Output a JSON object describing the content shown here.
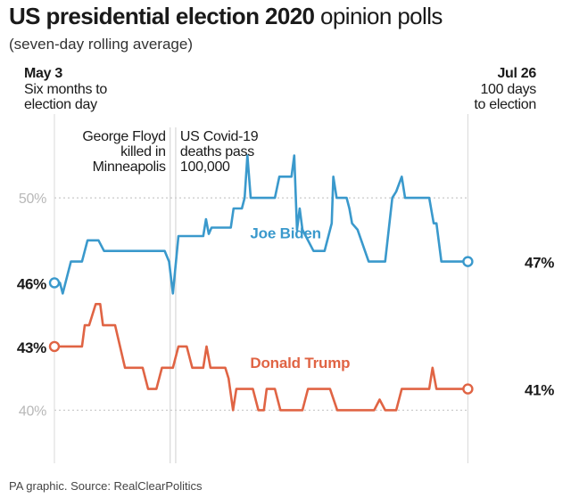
{
  "header": {
    "title_bold": "US presidential election 2020",
    "title_rest": "opinion polls",
    "subtitle": "(seven-day rolling average)"
  },
  "footer": {
    "source": "PA graphic. Source: RealClearPolitics"
  },
  "chart_data": {
    "type": "line",
    "title": "US presidential election 2020 opinion polls",
    "subtitle": "(seven-day rolling average)",
    "xlabel": "",
    "ylabel": "",
    "ylim": [
      37.5,
      56.3
    ],
    "xlim": [
      0,
      84
    ],
    "yticks": [
      {
        "value": 50,
        "label": "50%"
      },
      {
        "value": 40,
        "label": "40%"
      }
    ],
    "x_start": {
      "bold": "May 3",
      "lines": [
        "Six months to",
        "election day"
      ]
    },
    "x_end": {
      "bold": "Jul 26",
      "lines": [
        "100 days",
        "to election"
      ]
    },
    "events": [
      {
        "x": 21,
        "lines": [
          "George Floyd",
          "killed in",
          "Minneapolis"
        ],
        "align": "right"
      },
      {
        "x": 22,
        "lines": [
          "US Covid-19",
          "deaths pass",
          "100,000"
        ],
        "align": "left"
      }
    ],
    "series": [
      {
        "name": "Joe Biden",
        "color": "#3a99cc",
        "start_label": "46%",
        "end_label": "47%",
        "label_at": {
          "x": 36,
          "y": 48.1
        },
        "points": [
          [
            0,
            46
          ],
          [
            1,
            46
          ],
          [
            1.5,
            45.5
          ],
          [
            3,
            47
          ],
          [
            5,
            47
          ],
          [
            6,
            48
          ],
          [
            8,
            48
          ],
          [
            9,
            47.5
          ],
          [
            20,
            47.5
          ],
          [
            20.8,
            47
          ],
          [
            21.5,
            45.5
          ],
          [
            22.5,
            48.2
          ],
          [
            27,
            48.2
          ],
          [
            27.5,
            49
          ],
          [
            28,
            48.3
          ],
          [
            28.5,
            48.6
          ],
          [
            32,
            48.6
          ],
          [
            32.5,
            49.5
          ],
          [
            34,
            49.5
          ],
          [
            34.5,
            50
          ],
          [
            35,
            52
          ],
          [
            35.6,
            50
          ],
          [
            40,
            50
          ],
          [
            40.8,
            51
          ],
          [
            43,
            51
          ],
          [
            43.5,
            52
          ],
          [
            44,
            48.5
          ],
          [
            44.5,
            49.5
          ],
          [
            45,
            48.5
          ],
          [
            46,
            48
          ],
          [
            47,
            47.5
          ],
          [
            49,
            47.5
          ],
          [
            50.3,
            48.8
          ],
          [
            50.6,
            51
          ],
          [
            51.2,
            50
          ],
          [
            53,
            50
          ],
          [
            53.5,
            49.5
          ],
          [
            54,
            48.8
          ],
          [
            55,
            48.5
          ],
          [
            57,
            47
          ],
          [
            60,
            47
          ],
          [
            61.3,
            50
          ],
          [
            62,
            50.3
          ],
          [
            63,
            51
          ],
          [
            63.6,
            50
          ],
          [
            68,
            50
          ],
          [
            68.8,
            48.8
          ],
          [
            69.3,
            48.8
          ],
          [
            70.2,
            47
          ],
          [
            75,
            47
          ]
        ]
      },
      {
        "name": "Donald Trump",
        "color": "#e06444",
        "start_label": "43%",
        "end_label": "41%",
        "label_at": {
          "x": 36,
          "y": 42
        },
        "points": [
          [
            0,
            43
          ],
          [
            5,
            43
          ],
          [
            5.5,
            44
          ],
          [
            6.3,
            44
          ],
          [
            7.5,
            45
          ],
          [
            8.3,
            45
          ],
          [
            8.8,
            44
          ],
          [
            11,
            44
          ],
          [
            12.8,
            42
          ],
          [
            16,
            42
          ],
          [
            17,
            41
          ],
          [
            18.5,
            41
          ],
          [
            19.5,
            42
          ],
          [
            21.5,
            42
          ],
          [
            22.5,
            43
          ],
          [
            24,
            43
          ],
          [
            25,
            42
          ],
          [
            27,
            42
          ],
          [
            27.6,
            43
          ],
          [
            28.3,
            42
          ],
          [
            31,
            42
          ],
          [
            31.6,
            41.5
          ],
          [
            32.4,
            40
          ],
          [
            33,
            41
          ],
          [
            36,
            41
          ],
          [
            36.5,
            40.5
          ],
          [
            37,
            40
          ],
          [
            38,
            40
          ],
          [
            38.5,
            41
          ],
          [
            40,
            41
          ],
          [
            41,
            40
          ],
          [
            45,
            40
          ],
          [
            46,
            41
          ],
          [
            50,
            41
          ],
          [
            51.3,
            40
          ],
          [
            58,
            40
          ],
          [
            59,
            40.5
          ],
          [
            60,
            40
          ],
          [
            62,
            40
          ],
          [
            63,
            41
          ],
          [
            68,
            41
          ],
          [
            68.6,
            42
          ],
          [
            69.3,
            41
          ],
          [
            75,
            41
          ]
        ]
      }
    ]
  }
}
